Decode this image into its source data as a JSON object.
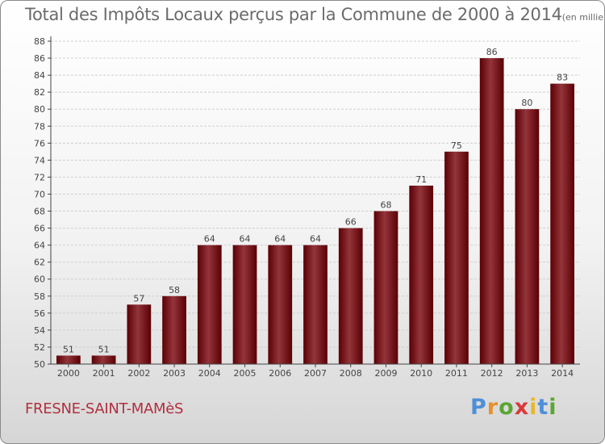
{
  "title": "Total des Impôts Locaux perçus par la Commune de 2000 à 2014",
  "unit": "(en milliers d'€)",
  "commune": "FRESNE-SAINT-MAMèS",
  "brand": {
    "letters": [
      "P",
      "r",
      "o",
      "x",
      "i",
      "t",
      "i"
    ],
    "colors": [
      "#4f8fd8",
      "#e8912a",
      "#5aa634",
      "#d83a3a",
      "#e8b82a",
      "#4f8fd8",
      "#5aa634"
    ]
  },
  "colors": {
    "bar_dark": "#5a0004",
    "bar_light": "#94343b",
    "grid": "#cfcfcf",
    "axis": "#444444"
  },
  "chart_data": {
    "type": "bar",
    "title": "Total des Impôts Locaux perçus par la Commune de 2000 à 2014",
    "xlabel": "",
    "ylabel": "(en milliers d'€)",
    "categories": [
      "2000",
      "2001",
      "2002",
      "2003",
      "2004",
      "2005",
      "2006",
      "2007",
      "2008",
      "2009",
      "2010",
      "2011",
      "2012",
      "2013",
      "2014"
    ],
    "values": [
      51,
      51,
      57,
      58,
      64,
      64,
      64,
      64,
      66,
      68,
      71,
      75,
      86,
      80,
      83
    ],
    "ylim": [
      50,
      88
    ],
    "yticks": [
      50,
      52,
      54,
      56,
      58,
      60,
      62,
      64,
      66,
      68,
      70,
      72,
      74,
      76,
      78,
      80,
      82,
      84,
      86,
      88
    ],
    "grid": true
  }
}
